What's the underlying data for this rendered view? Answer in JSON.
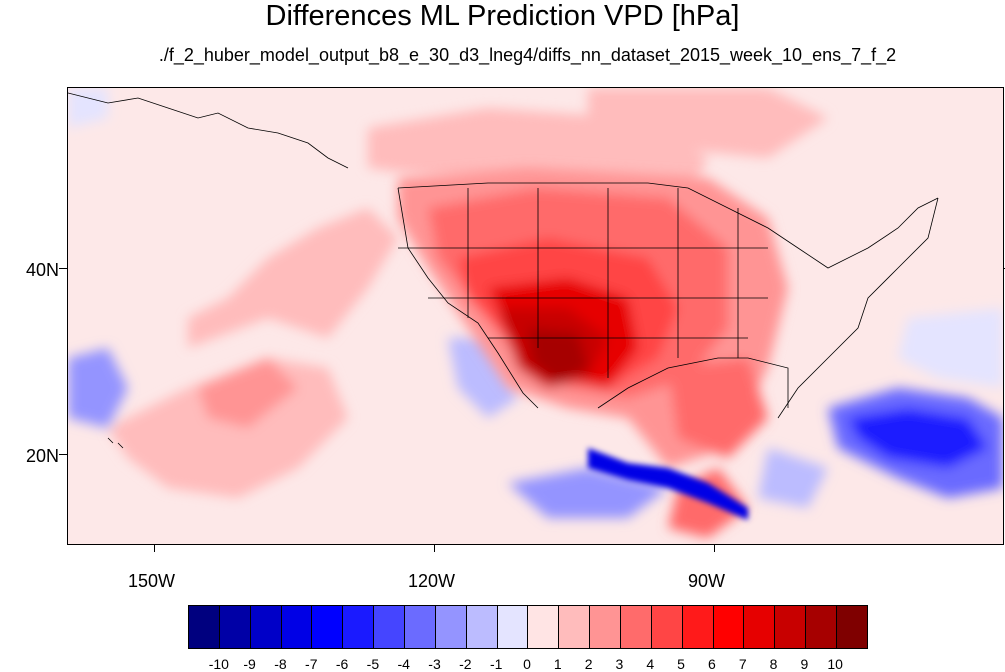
{
  "title": "Differences ML Prediction VPD [hPa]",
  "subtitle": "./f_2_huber_model_output_b8_e_30_d3_lneg4/diffs_nn_dataset_2015_week_10_ens_7_f_2",
  "map": {
    "lat_labels": [
      "40N",
      "20N"
    ],
    "lon_labels": [
      "150W",
      "120W",
      "90W"
    ],
    "background_color": "#fde8e8"
  },
  "colorbar": {
    "labels": [
      "-10",
      "-9",
      "-8",
      "-7",
      "-6",
      "-5",
      "-4",
      "-3",
      "-2",
      "-1",
      "0",
      "1",
      "2",
      "3",
      "4",
      "5",
      "6",
      "7",
      "8",
      "9",
      "10"
    ],
    "colors": [
      "#00007f",
      "#0000a6",
      "#0000c8",
      "#0000e6",
      "#0000ff",
      "#1a1aff",
      "#4545ff",
      "#6b6bff",
      "#9494ff",
      "#bcbcff",
      "#e4e4ff",
      "#ffe4e4",
      "#ffbcbc",
      "#ff9494",
      "#ff6b6b",
      "#ff4545",
      "#ff1a1a",
      "#ff0000",
      "#e60000",
      "#c80000",
      "#a60000",
      "#7f0000"
    ]
  }
}
